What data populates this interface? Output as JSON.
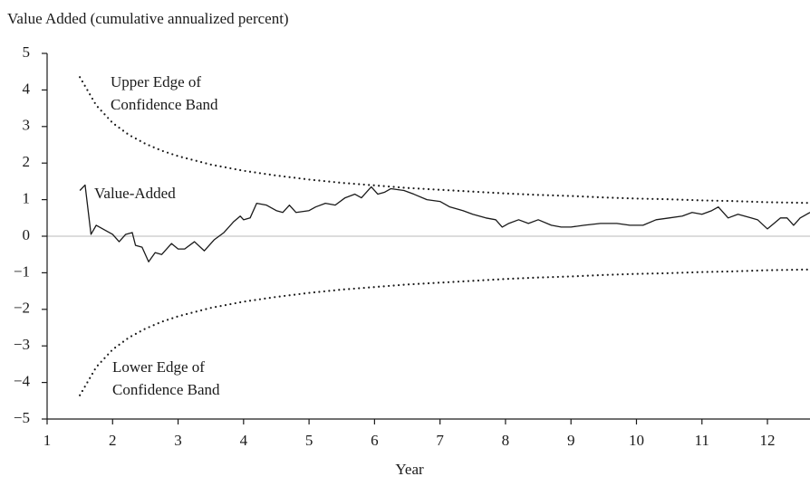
{
  "chart_data": {
    "type": "line",
    "y_label": "Value Added (cumulative annualized percent)",
    "x_label": "Year",
    "xlim": [
      1,
      12.65
    ],
    "ylim": [
      -5,
      5
    ],
    "xticks": [
      1,
      2,
      3,
      4,
      5,
      6,
      7,
      8,
      9,
      10,
      11,
      12
    ],
    "yticks": [
      {
        "value": -5,
        "label": "−5"
      },
      {
        "value": -4,
        "label": "−4"
      },
      {
        "value": -3,
        "label": "−3"
      },
      {
        "value": -2,
        "label": "−2"
      },
      {
        "value": -1,
        "label": "−1"
      },
      0,
      1,
      2,
      3,
      4,
      5
    ],
    "reference_line": {
      "value": 0,
      "color": "#c8c8c8"
    },
    "series": [
      {
        "name": "Value-Added",
        "color": "#1a1a1a",
        "style": "solid",
        "x": [
          1.5,
          1.58,
          1.67,
          1.75,
          1.85,
          2.0,
          2.1,
          2.2,
          2.3,
          2.35,
          2.45,
          2.55,
          2.65,
          2.75,
          2.9,
          3.0,
          3.1,
          3.25,
          3.4,
          3.55,
          3.7,
          3.85,
          3.95,
          4.0,
          4.1,
          4.2,
          4.35,
          4.5,
          4.6,
          4.7,
          4.8,
          5.0,
          5.1,
          5.25,
          5.4,
          5.55,
          5.7,
          5.8,
          5.95,
          6.05,
          6.15,
          6.25,
          6.45,
          6.6,
          6.8,
          7.0,
          7.15,
          7.35,
          7.5,
          7.7,
          7.85,
          7.95,
          8.05,
          8.2,
          8.35,
          8.5,
          8.7,
          8.85,
          9.0,
          9.2,
          9.45,
          9.7,
          9.9,
          10.1,
          10.3,
          10.5,
          10.7,
          10.85,
          11.0,
          11.15,
          11.25,
          11.4,
          11.55,
          11.75,
          11.85,
          12.0,
          12.1,
          12.2,
          12.3,
          12.4,
          12.5,
          12.65
        ],
        "values": [
          1.25,
          1.4,
          0.05,
          0.3,
          0.2,
          0.05,
          -0.15,
          0.05,
          0.1,
          -0.25,
          -0.3,
          -0.7,
          -0.45,
          -0.5,
          -0.2,
          -0.35,
          -0.35,
          -0.15,
          -0.4,
          -0.1,
          0.1,
          0.4,
          0.55,
          0.45,
          0.5,
          0.9,
          0.85,
          0.7,
          0.65,
          0.85,
          0.65,
          0.7,
          0.8,
          0.9,
          0.85,
          1.05,
          1.15,
          1.05,
          1.35,
          1.15,
          1.2,
          1.3,
          1.25,
          1.15,
          1.0,
          0.95,
          0.8,
          0.7,
          0.6,
          0.5,
          0.45,
          0.25,
          0.35,
          0.45,
          0.35,
          0.45,
          0.3,
          0.25,
          0.25,
          0.3,
          0.35,
          0.35,
          0.3,
          0.3,
          0.45,
          0.5,
          0.55,
          0.65,
          0.6,
          0.7,
          0.8,
          0.5,
          0.6,
          0.5,
          0.45,
          0.2,
          0.35,
          0.5,
          0.5,
          0.3,
          0.5,
          0.65
        ]
      },
      {
        "name": "Upper Edge of Confidence Band",
        "color": "#1a1a1a",
        "style": "dotted",
        "x": [
          1.5,
          1.75,
          2,
          2.25,
          2.5,
          2.75,
          3,
          3.5,
          4,
          4.5,
          5,
          5.5,
          6,
          6.5,
          7,
          7.5,
          8,
          8.5,
          9,
          9.5,
          10,
          10.5,
          11,
          11.5,
          12,
          12.65
        ],
        "values": [
          4.35,
          3.58,
          3.1,
          2.77,
          2.53,
          2.34,
          2.19,
          1.96,
          1.79,
          1.66,
          1.55,
          1.46,
          1.39,
          1.32,
          1.27,
          1.22,
          1.17,
          1.13,
          1.1,
          1.06,
          1.03,
          1.01,
          0.98,
          0.96,
          0.93,
          0.91
        ]
      },
      {
        "name": "Lower Edge of Confidence Band",
        "color": "#1a1a1a",
        "style": "dotted",
        "x": [
          1.5,
          1.75,
          2,
          2.25,
          2.5,
          2.75,
          3,
          3.5,
          4,
          4.5,
          5,
          5.5,
          6,
          6.5,
          7,
          7.5,
          8,
          8.5,
          9,
          9.5,
          10,
          10.5,
          11,
          11.5,
          12,
          12.65
        ],
        "values": [
          -4.35,
          -3.58,
          -3.1,
          -2.77,
          -2.53,
          -2.34,
          -2.19,
          -1.96,
          -1.79,
          -1.66,
          -1.55,
          -1.46,
          -1.39,
          -1.32,
          -1.27,
          -1.22,
          -1.17,
          -1.13,
          -1.1,
          -1.06,
          -1.03,
          -1.01,
          -0.98,
          -0.96,
          -0.93,
          -0.91
        ]
      }
    ],
    "annotations": [
      {
        "lines": [
          "Upper Edge of",
          "Confidence Band"
        ]
      },
      {
        "lines": [
          "Value-Added"
        ]
      },
      {
        "lines": [
          "Lower Edge of",
          "Confidence Band"
        ]
      }
    ]
  }
}
